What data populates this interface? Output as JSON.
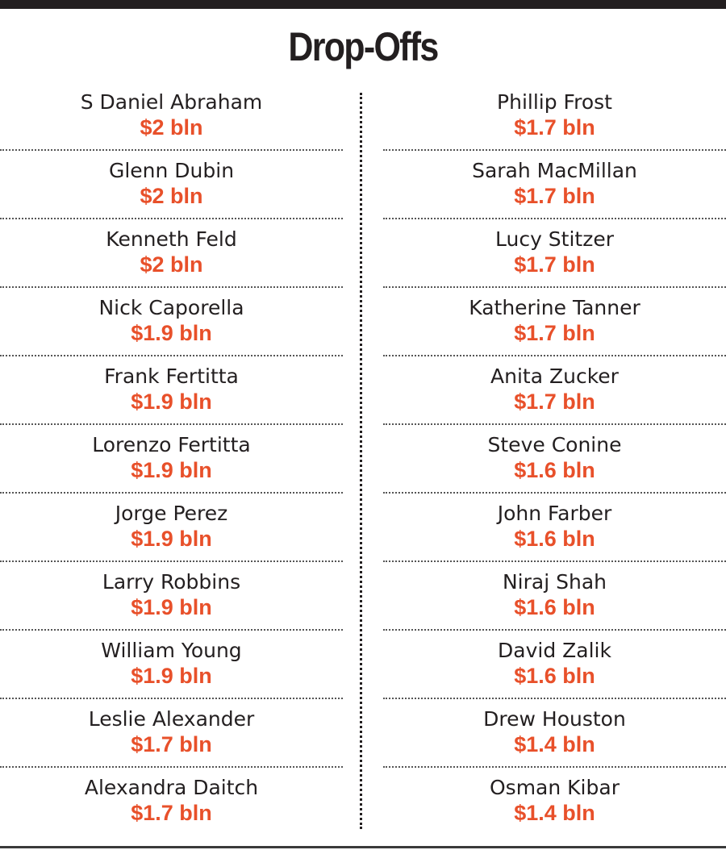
{
  "title": "Drop-Offs",
  "colors": {
    "accent": "#e8502a",
    "text": "#231f20",
    "rule": "#231f20"
  },
  "columns": {
    "left": [
      {
        "name": "S Daniel Abraham",
        "value": "$2 bln"
      },
      {
        "name": "Glenn Dubin",
        "value": "$2 bln"
      },
      {
        "name": "Kenneth Feld",
        "value": "$2 bln"
      },
      {
        "name": "Nick Caporella",
        "value": "$1.9 bln"
      },
      {
        "name": "Frank Fertitta",
        "value": "$1.9 bln"
      },
      {
        "name": "Lorenzo Fertitta",
        "value": "$1.9 bln"
      },
      {
        "name": "Jorge Perez",
        "value": "$1.9 bln"
      },
      {
        "name": "Larry Robbins",
        "value": "$1.9 bln"
      },
      {
        "name": "William Young",
        "value": "$1.9 bln"
      },
      {
        "name": "Leslie Alexander",
        "value": "$1.7 bln"
      },
      {
        "name": "Alexandra Daitch",
        "value": "$1.7 bln"
      }
    ],
    "right": [
      {
        "name": "Phillip Frost",
        "value": "$1.7 bln"
      },
      {
        "name": "Sarah MacMillan",
        "value": "$1.7 bln"
      },
      {
        "name": "Lucy Stitzer",
        "value": "$1.7 bln"
      },
      {
        "name": "Katherine Tanner",
        "value": "$1.7 bln"
      },
      {
        "name": "Anita Zucker",
        "value": "$1.7 bln"
      },
      {
        "name": "Steve Conine",
        "value": "$1.6 bln"
      },
      {
        "name": "John Farber",
        "value": "$1.6 bln"
      },
      {
        "name": "Niraj Shah",
        "value": "$1.6 bln"
      },
      {
        "name": "David Zalik",
        "value": "$1.6 bln"
      },
      {
        "name": "Drew Houston",
        "value": "$1.4 bln"
      },
      {
        "name": "Osman Kibar",
        "value": "$1.4 bln"
      }
    ]
  }
}
